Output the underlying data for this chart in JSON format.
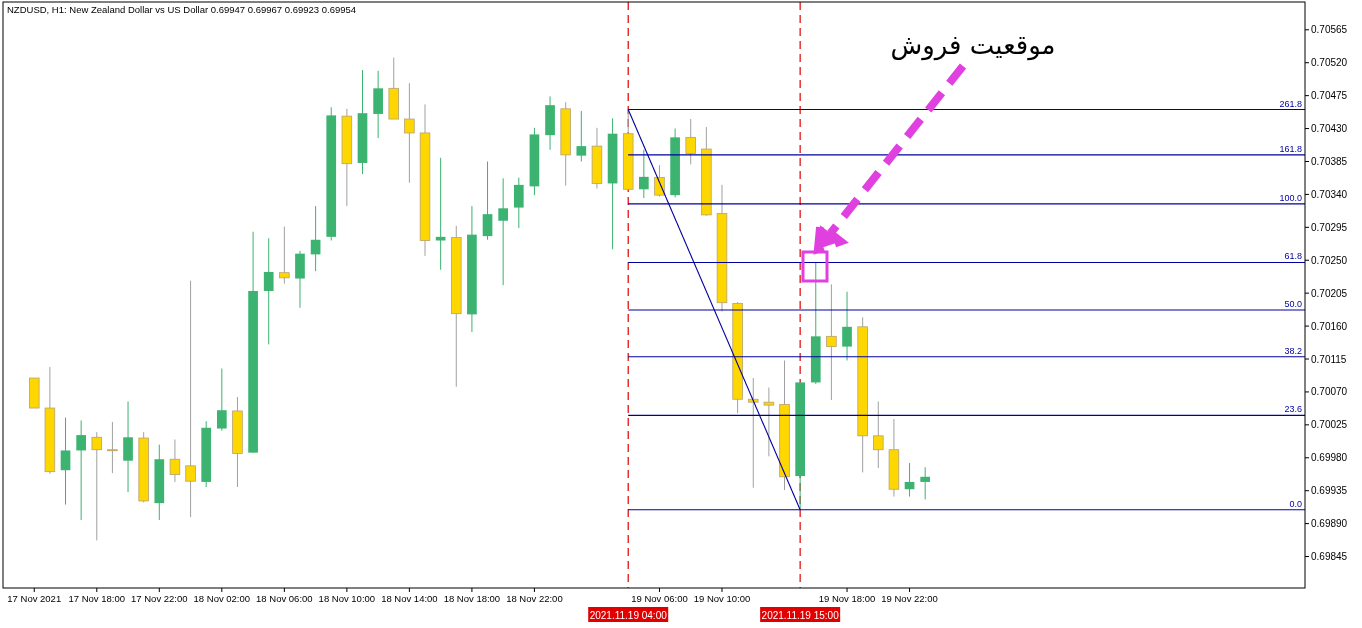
{
  "chart_data": {
    "type": "candlestick",
    "title": "NZDUSD, H1: New Zealand Dollar vs US Dollar  0.69947 0.69967 0.69923 0.69954",
    "x": [
      "2021-11-17T14:00",
      "2021-11-17T15:00",
      "2021-11-17T16:00",
      "2021-11-17T17:00",
      "2021-11-17T18:00",
      "2021-11-17T19:00",
      "2021-11-17T20:00",
      "2021-11-17T21:00",
      "2021-11-17T22:00",
      "2021-11-17T23:00",
      "2021-11-18T00:00",
      "2021-11-18T01:00",
      "2021-11-18T02:00",
      "2021-11-18T03:00",
      "2021-11-18T04:00",
      "2021-11-18T05:00",
      "2021-11-18T06:00",
      "2021-11-18T07:00",
      "2021-11-18T08:00",
      "2021-11-18T09:00",
      "2021-11-18T10:00",
      "2021-11-18T11:00",
      "2021-11-18T12:00",
      "2021-11-18T13:00",
      "2021-11-18T14:00",
      "2021-11-18T15:00",
      "2021-11-18T16:00",
      "2021-11-18T17:00",
      "2021-11-18T18:00",
      "2021-11-18T19:00",
      "2021-11-18T20:00",
      "2021-11-18T21:00",
      "2021-11-18T22:00",
      "2021-11-18T23:00",
      "2021-11-19T00:00",
      "2021-11-19T01:00",
      "2021-11-19T02:00",
      "2021-11-19T03:00",
      "2021-11-19T04:00",
      "2021-11-19T05:00",
      "2021-11-19T06:00",
      "2021-11-19T07:00",
      "2021-11-19T08:00",
      "2021-11-19T09:00",
      "2021-11-19T10:00",
      "2021-11-19T11:00",
      "2021-11-19T12:00",
      "2021-11-19T13:00",
      "2021-11-19T14:00",
      "2021-11-19T15:00",
      "2021-11-19T16:00",
      "2021-11-19T17:00",
      "2021-11-19T18:00",
      "2021-11-19T19:00",
      "2021-11-19T20:00",
      "2021-11-19T21:00",
      "2021-11-19T22:00",
      "2021-11-19T23:00"
    ],
    "ohlc": [
      [
        0.70089,
        0.70089,
        0.70048,
        0.70048
      ],
      [
        0.70048,
        0.70104,
        0.69958,
        0.69961
      ],
      [
        0.69963,
        0.70035,
        0.69916,
        0.6999
      ],
      [
        0.6999,
        0.70031,
        0.69895,
        0.70011
      ],
      [
        0.70008,
        0.70015,
        0.69867,
        0.69991
      ],
      [
        0.69991,
        0.70029,
        0.69959,
        0.69991
      ],
      [
        0.69976,
        0.70057,
        0.69933,
        0.70008
      ],
      [
        0.70007,
        0.70015,
        0.69919,
        0.69921
      ],
      [
        0.69918,
        0.69998,
        0.69895,
        0.69978
      ],
      [
        0.69978,
        0.70005,
        0.69947,
        0.69957
      ],
      [
        0.69969,
        0.70222,
        0.69899,
        0.69948
      ],
      [
        0.69947,
        0.7003,
        0.6994,
        0.70021
      ],
      [
        0.7002,
        0.70102,
        0.70017,
        0.70045
      ],
      [
        0.70044,
        0.70063,
        0.6994,
        0.69986
      ],
      [
        0.69987,
        0.70289,
        0.69987,
        0.70208
      ],
      [
        0.70208,
        0.7028,
        0.70135,
        0.70234
      ],
      [
        0.70233,
        0.70296,
        0.70218,
        0.70226
      ],
      [
        0.70225,
        0.70263,
        0.70185,
        0.70259
      ],
      [
        0.70258,
        0.70324,
        0.70235,
        0.70278
      ],
      [
        0.70282,
        0.70459,
        0.70277,
        0.70448
      ],
      [
        0.70447,
        0.70457,
        0.70324,
        0.70382
      ],
      [
        0.70383,
        0.7051,
        0.70368,
        0.70451
      ],
      [
        0.7045,
        0.70509,
        0.70417,
        0.70485
      ],
      [
        0.70485,
        0.70527,
        0.70443,
        0.70443
      ],
      [
        0.70443,
        0.70492,
        0.70356,
        0.70424
      ],
      [
        0.70424,
        0.70463,
        0.70256,
        0.70277
      ],
      [
        0.70277,
        0.7039,
        0.70237,
        0.70282
      ],
      [
        0.70281,
        0.70297,
        0.70077,
        0.70177
      ],
      [
        0.70176,
        0.70324,
        0.70152,
        0.70285
      ],
      [
        0.70283,
        0.70385,
        0.70278,
        0.70313
      ],
      [
        0.70304,
        0.70362,
        0.70216,
        0.70321
      ],
      [
        0.70322,
        0.70363,
        0.70294,
        0.70353
      ],
      [
        0.70351,
        0.70431,
        0.70339,
        0.70422
      ],
      [
        0.70421,
        0.70474,
        0.70401,
        0.70462
      ],
      [
        0.70457,
        0.70466,
        0.70352,
        0.70394
      ],
      [
        0.70393,
        0.70454,
        0.70385,
        0.70406
      ],
      [
        0.70406,
        0.70431,
        0.70348,
        0.70355
      ],
      [
        0.70355,
        0.70444,
        0.70265,
        0.70423
      ],
      [
        0.70423,
        0.70456,
        0.70347,
        0.70347
      ],
      [
        0.70347,
        0.70401,
        0.70335,
        0.70364
      ],
      [
        0.70363,
        0.7038,
        0.70337,
        0.70339
      ],
      [
        0.70339,
        0.7043,
        0.70336,
        0.70418
      ],
      [
        0.70418,
        0.70443,
        0.70381,
        0.70396
      ],
      [
        0.70402,
        0.70432,
        0.70311,
        0.70312
      ],
      [
        0.70314,
        0.70353,
        0.7018,
        0.70192
      ],
      [
        0.70191,
        0.70193,
        0.70041,
        0.7006
      ],
      [
        0.7006,
        0.70089,
        0.69939,
        0.70056
      ],
      [
        0.70056,
        0.70076,
        0.69982,
        0.70052
      ],
      [
        0.70053,
        0.70113,
        0.69936,
        0.69954
      ],
      [
        0.69955,
        0.70083,
        0.69909,
        0.70083
      ],
      [
        0.70083,
        0.70247,
        0.70081,
        0.70146
      ],
      [
        0.70146,
        0.70217,
        0.70059,
        0.70132
      ],
      [
        0.70132,
        0.70207,
        0.70113,
        0.70159
      ],
      [
        0.70159,
        0.70172,
        0.6996,
        0.7001
      ],
      [
        0.7001,
        0.70057,
        0.69966,
        0.69991
      ],
      [
        0.69991,
        0.70033,
        0.69927,
        0.69937
      ],
      [
        0.69937,
        0.69973,
        0.69927,
        0.69947
      ],
      [
        0.69947,
        0.69967,
        0.69923,
        0.69954
      ]
    ],
    "colors": [
      "#ffd700",
      "#ffd700",
      "#3cb371",
      "#3cb371",
      "#ffd700",
      "#ffd700",
      "#3cb371",
      "#ffd700",
      "#3cb371",
      "#ffd700",
      "#ffd700",
      "#3cb371",
      "#3cb371",
      "#ffd700",
      "#3cb371",
      "#3cb371",
      "#ffd700",
      "#3cb371",
      "#3cb371",
      "#3cb371",
      "#ffd700",
      "#3cb371",
      "#3cb371",
      "#ffd700",
      "#ffd700",
      "#ffd700",
      "#3cb371",
      "#ffd700",
      "#3cb371",
      "#3cb371",
      "#3cb371",
      "#3cb371",
      "#3cb371",
      "#3cb371",
      "#ffd700",
      "#3cb371",
      "#ffd700",
      "#3cb371",
      "#ffd700",
      "#3cb371",
      "#ffd700",
      "#3cb371",
      "#ffd700",
      "#ffd700",
      "#ffd700",
      "#ffd700",
      "#ffd700",
      "#ffd700",
      "#ffd700",
      "#3cb371",
      "#3cb371",
      "#ffd700",
      "#3cb371",
      "#ffd700",
      "#ffd700",
      "#ffd700",
      "#3cb371",
      "#3cb371"
    ],
    "series": [
      {
        "type": "line",
        "color": "#0000a0",
        "x": [
          "2021-11-19T04:00",
          "2021-11-19T15:00"
        ],
        "values": [
          0.70456,
          0.69909
        ]
      },
      {
        "type": "line",
        "name": "261.8",
        "color": "#0000a0",
        "x": [
          "2021-11-19T04:00",
          "2021-11-20T23:18"
        ],
        "values": [
          0.70456,
          0.70456
        ]
      },
      {
        "type": "line",
        "name": "161.8",
        "color": "#0000a0",
        "x": [
          "2021-11-19T04:00",
          "2021-11-20T23:18"
        ],
        "values": [
          0.70394,
          0.70394
        ]
      },
      {
        "type": "line",
        "name": "100.0",
        "color": "#0000a0",
        "x": [
          "2021-11-19T04:00",
          "2021-11-20T23:18"
        ],
        "values": [
          0.70327,
          0.70327
        ]
      },
      {
        "type": "line",
        "name": "61.8",
        "color": "#0000a0",
        "x": [
          "2021-11-19T04:00",
          "2021-11-20T23:18"
        ],
        "values": [
          0.70247,
          0.70247
        ]
      },
      {
        "type": "line",
        "name": "50.0",
        "color": "#0000a0",
        "x": [
          "2021-11-19T04:00",
          "2021-11-20T23:18"
        ],
        "values": [
          0.70182,
          0.70182
        ]
      },
      {
        "type": "line",
        "name": "38.2",
        "color": "#0000a0",
        "x": [
          "2021-11-19T04:00",
          "2021-11-20T23:18"
        ],
        "values": [
          0.70118,
          0.70118
        ]
      },
      {
        "type": "line",
        "name": "23.6",
        "color": "#0000a0",
        "x": [
          "2021-11-19T04:00",
          "2021-11-20T23:18"
        ],
        "values": [
          0.70038,
          0.70038
        ]
      },
      {
        "type": "line",
        "name": "0.0",
        "color": "#0000a0",
        "x": [
          "2021-11-19T04:00",
          "2021-11-20T23:18"
        ],
        "values": [
          0.69909,
          0.69909
        ]
      }
    ],
    "ref_lines": [
      {
        "axis": "x",
        "value": "2021-11-19T04:00",
        "label": "2021.11.19 04:00",
        "color": "#e00000",
        "line_style": "dashed"
      },
      {
        "axis": "x",
        "value": "2021-11-19T15:00",
        "label": "2021.11.19 15:00",
        "color": "#e00000",
        "line_style": "dashed"
      }
    ],
    "annotations": [
      "موقعیت فروش"
    ],
    "xlim": [
      "2021-11-17T12:00",
      "2021-11-20T23:18"
    ],
    "xticks": [
      {
        "value": "2021-11-17T14:00",
        "label": "17 Nov 2021"
      },
      {
        "value": "2021-11-17T18:00",
        "label": "17 Nov 18:00"
      },
      {
        "value": "2021-11-17T22:00",
        "label": "17 Nov 22:00"
      },
      {
        "value": "2021-11-18T02:00",
        "label": "18 Nov 02:00"
      },
      {
        "value": "2021-11-18T06:00",
        "label": "18 Nov 06:00"
      },
      {
        "value": "2021-11-18T10:00",
        "label": "18 Nov 10:00"
      },
      {
        "value": "2021-11-18T14:00",
        "label": "18 Nov 14:00"
      },
      {
        "value": "2021-11-18T18:00",
        "label": "18 Nov 18:00"
      },
      {
        "value": "2021-11-18T22:00",
        "label": "18 Nov 22:00"
      },
      {
        "value": "2021-11-19T06:00",
        "label": "19 Nov 06:00"
      },
      {
        "value": "2021-11-19T10:00",
        "label": "19 Nov 10:00"
      },
      {
        "value": "2021-11-19T18:00",
        "label": "19 Nov 18:00"
      },
      {
        "value": "2021-11-19T22:00",
        "label": "19 Nov 22:00"
      }
    ],
    "ylim": [
      0.69802,
      0.70603
    ],
    "yticks": [
      0.70565,
      {
        "value": 0.7052,
        "label": "0.70520"
      },
      0.70475,
      {
        "value": 0.7043,
        "label": "0.70430"
      },
      0.70385,
      {
        "value": 0.7034,
        "label": "0.70340"
      },
      0.70295,
      {
        "value": 0.7025,
        "label": "0.70250"
      },
      0.70205,
      {
        "value": 0.7016,
        "label": "0.70160"
      },
      0.70115,
      {
        "value": 0.7007,
        "label": "0.70070"
      },
      0.70025,
      {
        "value": 0.6998,
        "label": "0.69980"
      },
      0.69935,
      {
        "value": 0.6989,
        "label": "0.69890"
      },
      0.69845
    ]
  }
}
